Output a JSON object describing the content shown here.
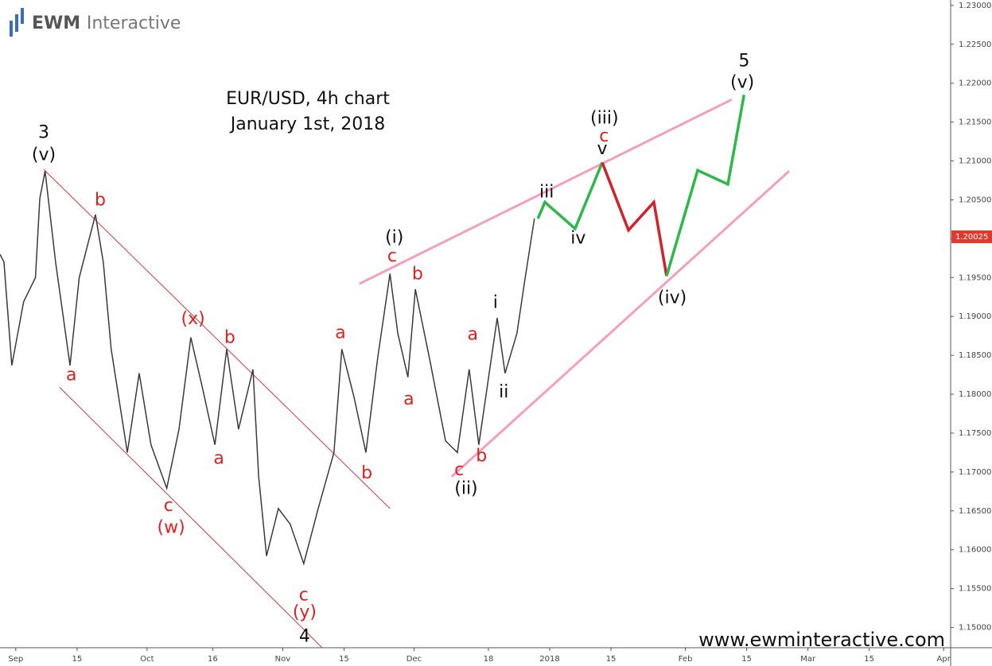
{
  "header": {
    "logo": "EWM",
    "logo_suffix": "Interactive"
  },
  "footer": "www.ewminteractive.com",
  "chart_data": {
    "type": "line",
    "title": "EUR/USD, 4h chart",
    "subtitle": "January 1st, 2018",
    "xlim": [
      -3.6,
      213.6
    ],
    "ylim": [
      1.1474,
      1.2307
    ],
    "xticks": [
      {
        "value": 0,
        "label": "Sep"
      },
      {
        "value": 14,
        "label": "15"
      },
      {
        "value": 30,
        "label": "Oct"
      },
      {
        "value": 45,
        "label": "16"
      },
      {
        "value": 61,
        "label": "Nov"
      },
      {
        "value": 75,
        "label": "15"
      },
      {
        "value": 91,
        "label": "Dec"
      },
      {
        "value": 108,
        "label": "18"
      },
      {
        "value": 122,
        "label": "2018"
      },
      {
        "value": 136,
        "label": "15"
      },
      {
        "value": 153,
        "label": "Feb"
      },
      {
        "value": 167,
        "label": "15"
      },
      {
        "value": 181,
        "label": "Mar"
      },
      {
        "value": 195,
        "label": "15"
      },
      {
        "value": 212,
        "label": "Apr"
      }
    ],
    "yticks": [
      {
        "value": 1.15,
        "label": "1.15000"
      },
      {
        "value": 1.155,
        "label": "1.15500"
      },
      {
        "value": 1.16,
        "label": "1.16000"
      },
      {
        "value": 1.165,
        "label": "1.16500"
      },
      {
        "value": 1.17,
        "label": "1.17000"
      },
      {
        "value": 1.175,
        "label": "1.17500"
      },
      {
        "value": 1.18,
        "label": "1.18000"
      },
      {
        "value": 1.185,
        "label": "1.18500"
      },
      {
        "value": 1.19,
        "label": "1.19000"
      },
      {
        "value": 1.195,
        "label": "1.19500"
      },
      {
        "value": 1.2,
        "label": "1.20000"
      },
      {
        "value": 1.205,
        "label": "1.20500"
      },
      {
        "value": 1.21,
        "label": "1.21000"
      },
      {
        "value": 1.215,
        "label": "1.21500"
      },
      {
        "value": 1.22,
        "label": "1.22000"
      },
      {
        "value": 1.225,
        "label": "1.22500"
      },
      {
        "value": 1.23,
        "label": "1.23000"
      }
    ],
    "last_price": {
      "value": 1.20025,
      "label": "1.20025",
      "color": "#e03a2e"
    },
    "price": {
      "color": "#3a3a3a",
      "x": [
        -3.6,
        -2.7,
        -0.9,
        1.8,
        4.5,
        5.5,
        6.7,
        9.1,
        12.4,
        14.5,
        18.2,
        20,
        21.8,
        25.5,
        28.2,
        30.9,
        34.5,
        37.3,
        40,
        42.7,
        45.5,
        48.2,
        50.9,
        54.2,
        55.5,
        57.3,
        60,
        62.7,
        65.8,
        69.1,
        72.7,
        74.5,
        77.3,
        80,
        82.7,
        85.5,
        87.3,
        89.6,
        91.3,
        94.5,
        98.2,
        100.9,
        103.6,
        105.8,
        110,
        111.8,
        114.5,
        116.4,
        118.5
      ],
      "y": [
        1.198,
        1.197,
        1.1837,
        1.1919,
        1.195,
        1.2052,
        1.2087,
        1.197,
        1.1837,
        1.195,
        1.2031,
        1.197,
        1.1858,
        1.1725,
        1.1827,
        1.1735,
        1.1679,
        1.1755,
        1.1873,
        1.1807,
        1.1735,
        1.1858,
        1.1755,
        1.1832,
        1.1694,
        1.1592,
        1.1653,
        1.1633,
        1.1582,
        1.1653,
        1.1725,
        1.1858,
        1.1796,
        1.1725,
        1.1847,
        1.1955,
        1.1878,
        1.1822,
        1.1935,
        1.1847,
        1.174,
        1.1725,
        1.1832,
        1.1735,
        1.1898,
        1.1827,
        1.1878,
        1.195,
        1.2026
      ]
    },
    "projection": [
      {
        "color": "#2db84a",
        "x": [
          119.3,
          120.9,
          127.8,
          134
        ],
        "y": [
          1.2026,
          1.2047,
          1.2013,
          1.2098
        ]
      },
      {
        "color": "#d4202a",
        "x": [
          134,
          140,
          145.8,
          148.7
        ],
        "y": [
          1.2098,
          1.2011,
          1.2047,
          1.1952
        ]
      },
      {
        "color": "#2db84a",
        "x": [
          148.7,
          155.8,
          162.7,
          166.4
        ],
        "y": [
          1.1952,
          1.2088,
          1.207,
          1.2185
        ]
      }
    ],
    "lines": [
      {
        "color": "#d03a3a",
        "x": [
          6.4,
          85.5
        ],
        "y": [
          1.2089,
          1.1653
        ]
      },
      {
        "color": "#d03a3a",
        "x": [
          10,
          70
        ],
        "y": [
          1.1809,
          1.1474
        ]
      },
      {
        "color": "#f4a0bc",
        "x": [
          78.5,
          163.6
        ],
        "y": [
          1.1942,
          1.2179
        ]
      },
      {
        "color": "#f4a0bc",
        "x": [
          99.6,
          176.7
        ],
        "y": [
          1.1694,
          1.2087
        ]
      }
    ],
    "annotations": [
      {
        "text": "3",
        "color": "#111111",
        "x": 6.4,
        "y": 1.2136
      },
      {
        "text": "(v)",
        "color": "#111111",
        "x": 6.4,
        "y": 1.2107
      },
      {
        "text": "b",
        "color": "#e0201e",
        "x": 19.3,
        "y": 1.2049
      },
      {
        "text": "a",
        "color": "#e0201e",
        "x": 12.7,
        "y": 1.1824
      },
      {
        "text": "(x)",
        "color": "#e0201e",
        "x": 40.5,
        "y": 1.1896
      },
      {
        "text": "b",
        "color": "#e0201e",
        "x": 48.9,
        "y": 1.1872
      },
      {
        "text": "a",
        "color": "#e0201e",
        "x": 46.4,
        "y": 1.1717
      },
      {
        "text": "c",
        "color": "#e0201e",
        "x": 34.9,
        "y": 1.1656
      },
      {
        "text": "(w)",
        "color": "#e0201e",
        "x": 35.5,
        "y": 1.1628
      },
      {
        "text": "c",
        "color": "#e0201e",
        "x": 65.8,
        "y": 1.1541
      },
      {
        "text": "(y)",
        "color": "#e0201e",
        "x": 66,
        "y": 1.1519
      },
      {
        "text": "4",
        "color": "#111111",
        "x": 66,
        "y": 1.1488
      },
      {
        "text": "a",
        "color": "#e0201e",
        "x": 74.2,
        "y": 1.1878
      },
      {
        "text": "b",
        "color": "#e0201e",
        "x": 80.2,
        "y": 1.1698
      },
      {
        "text": "(i)",
        "color": "#111111",
        "x": 86.5,
        "y": 1.2001
      },
      {
        "text": "c",
        "color": "#e0201e",
        "x": 86,
        "y": 1.1977
      },
      {
        "text": "b",
        "color": "#e0201e",
        "x": 91.8,
        "y": 1.1954
      },
      {
        "text": "a",
        "color": "#e0201e",
        "x": 89.8,
        "y": 1.1793
      },
      {
        "text": "a",
        "color": "#e0201e",
        "x": 104.4,
        "y": 1.1876
      },
      {
        "text": "c",
        "color": "#e0201e",
        "x": 101.3,
        "y": 1.1702
      },
      {
        "text": "b",
        "color": "#e0201e",
        "x": 106.4,
        "y": 1.172
      },
      {
        "text": "(ii)",
        "color": "#111111",
        "x": 102.9,
        "y": 1.1678
      },
      {
        "text": "i",
        "color": "#111111",
        "x": 109.6,
        "y": 1.1917
      },
      {
        "text": "ii",
        "color": "#111111",
        "x": 111.5,
        "y": 1.1802
      },
      {
        "text": "iii",
        "color": "#111111",
        "x": 121.3,
        "y": 1.2059
      },
      {
        "text": "iv",
        "color": "#111111",
        "x": 128.5,
        "y": 1.2
      },
      {
        "text": "(iii)",
        "color": "#111111",
        "x": 134.5,
        "y": 1.2154
      },
      {
        "text": "c",
        "color": "#e0201e",
        "x": 134.4,
        "y": 1.2131
      },
      {
        "text": "v",
        "color": "#111111",
        "x": 134,
        "y": 1.2115
      },
      {
        "text": "(iv)",
        "color": "#111111",
        "x": 150,
        "y": 1.1923
      },
      {
        "text": "5",
        "color": "#111111",
        "x": 166.4,
        "y": 1.2228
      },
      {
        "text": "(v)",
        "color": "#111111",
        "x": 166,
        "y": 1.22
      }
    ]
  }
}
